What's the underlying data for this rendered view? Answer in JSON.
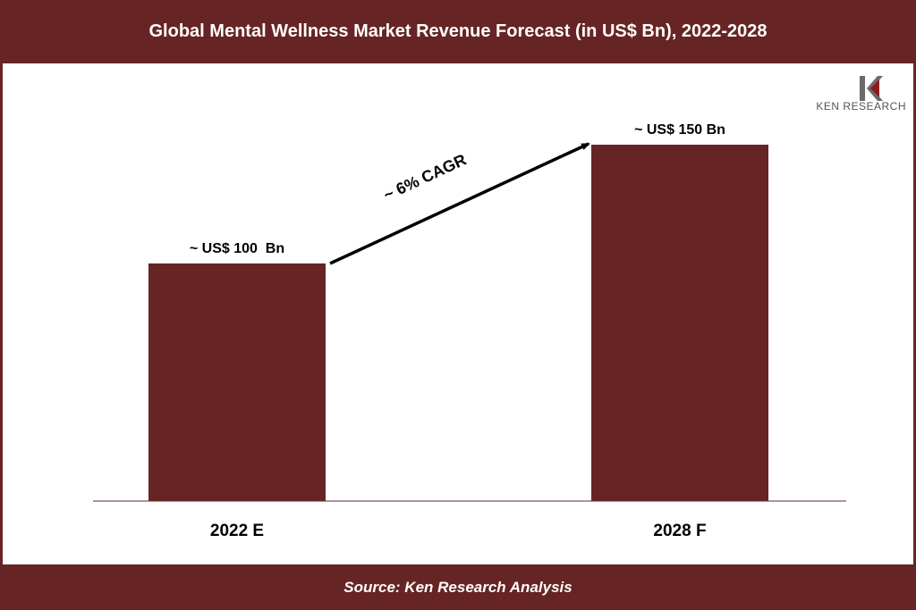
{
  "header": {
    "title": "Global Mental Wellness  Market Revenue Forecast (in US$ Bn), 2022-2028"
  },
  "footer": {
    "source": "Source: Ken Research Analysis"
  },
  "logo": {
    "text": "KEN RESEARCH",
    "icon": "ken-research-logo"
  },
  "colors": {
    "brand": "#672424",
    "bar": "#672424",
    "arrow": "#000000",
    "axis": "#672424"
  },
  "chart_data": {
    "type": "bar",
    "categories": [
      "2022 E",
      "2028 F"
    ],
    "values": [
      100,
      150
    ],
    "data_labels": [
      "~ US$ 100  Bn",
      "~ US$ 150 Bn"
    ],
    "ylim": [
      0,
      150
    ],
    "annotations": [
      {
        "text": "~ 6% CAGR",
        "from_category": "2022 E",
        "to_category": "2028 F",
        "kind": "arrow"
      }
    ],
    "grid": false,
    "legend": "none"
  }
}
